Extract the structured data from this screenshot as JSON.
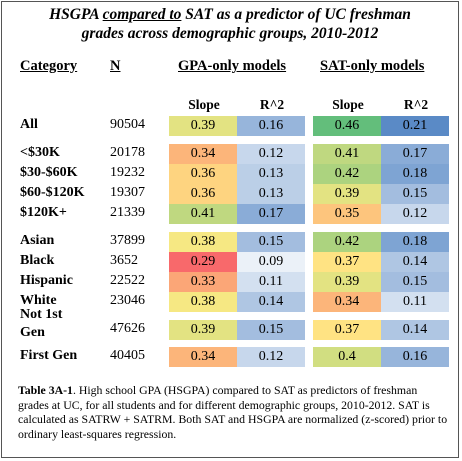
{
  "title_line1_pre": "HSGPA ",
  "title_line1_u": "compared to",
  "title_line1_post": " SAT as a predictor of UC freshman",
  "title_line2": "grades across demographic groups, 2010-2012",
  "headers": {
    "category": "Category",
    "n": "N",
    "gpa": "GPA-only models",
    "sat": "SAT-only models"
  },
  "subheaders": {
    "slope": "Slope",
    "r2": "R^2"
  },
  "rows": [
    {
      "label": "All",
      "n": "90504",
      "gpa_slope": "0.39",
      "gpa_r2": "0.16",
      "sat_slope": "0.46",
      "sat_r2": "0.21"
    },
    {
      "label": "<$30K",
      "n": "20178",
      "gpa_slope": "0.34",
      "gpa_r2": "0.12",
      "sat_slope": "0.41",
      "sat_r2": "0.17"
    },
    {
      "label": "$30-$60K",
      "n": "19232",
      "gpa_slope": "0.36",
      "gpa_r2": "0.13",
      "sat_slope": "0.42",
      "sat_r2": "0.18"
    },
    {
      "label": "$60-$120K",
      "n": "19307",
      "gpa_slope": "0.36",
      "gpa_r2": "0.13",
      "sat_slope": "0.39",
      "sat_r2": "0.15"
    },
    {
      "label": "$120K+",
      "n": "21339",
      "gpa_slope": "0.41",
      "gpa_r2": "0.17",
      "sat_slope": "0.35",
      "sat_r2": "0.12"
    },
    {
      "label": "Asian",
      "n": "37899",
      "gpa_slope": "0.38",
      "gpa_r2": "0.15",
      "sat_slope": "0.42",
      "sat_r2": "0.18"
    },
    {
      "label": "Black",
      "n": "3652",
      "gpa_slope": "0.29",
      "gpa_r2": "0.09",
      "sat_slope": "0.37",
      "sat_r2": "0.14"
    },
    {
      "label": "Hispanic",
      "n": "22522",
      "gpa_slope": "0.33",
      "gpa_r2": "0.11",
      "sat_slope": "0.39",
      "sat_r2": "0.15"
    },
    {
      "label": "White",
      "n": "23046",
      "gpa_slope": "0.38",
      "gpa_r2": "0.14",
      "sat_slope": "0.34",
      "sat_r2": "0.11"
    },
    {
      "label": "Not 1st",
      "label2": "Gen",
      "n": "47626",
      "gpa_slope": "0.39",
      "gpa_r2": "0.15",
      "sat_slope": "0.37",
      "sat_r2": "0.14"
    },
    {
      "label": "First Gen",
      "n": "40405",
      "gpa_slope": "0.34",
      "gpa_r2": "0.12",
      "sat_slope": "0.4",
      "sat_r2": "0.16"
    }
  ],
  "colors": {
    "slope_high": "#63be7b",
    "slope_mid": "#ffeb84",
    "slope_low": "#f8696b",
    "r2_high": "#5a8ac6",
    "r2_low": "#ffffff"
  },
  "caption_bold": "Table 3A-1",
  "caption_text": ". High school GPA (HSGPA) compared to SAT as predictors of freshman grades at UC, for all students and for different demographic groups, 2010-2012. SAT is calculated as SATRW + SATRM. Both SAT and HSGPA are normalized (z-scored) prior to ordinary least-squares regression."
}
